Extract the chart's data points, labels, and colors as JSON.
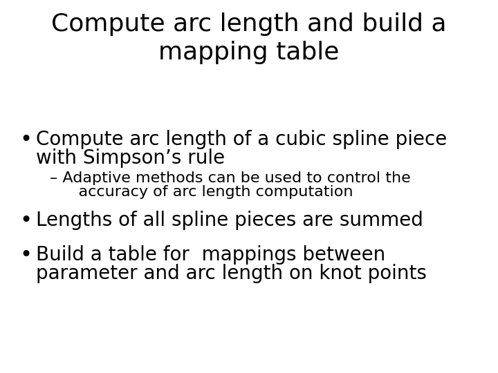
{
  "title_line1": "Compute arc length and build a",
  "title_line2": "mapping table",
  "bullet1_line1": "Compute arc length of a cubic spline piece",
  "bullet1_line2": "with Simpson’s rule",
  "sub_bullet1_line1": "– Adaptive methods can be used to control the",
  "sub_bullet1_line2": "    accuracy of arc length computation",
  "bullet2": "Lengths of all spline pieces are summed",
  "bullet3_line1": "Build a table for  mappings between",
  "bullet3_line2": "parameter and arc length on knot points",
  "bg_color": "#ffffff",
  "text_color": "#000000",
  "title_fontsize": 26,
  "bullet_fontsize": 20,
  "sub_bullet_fontsize": 16
}
